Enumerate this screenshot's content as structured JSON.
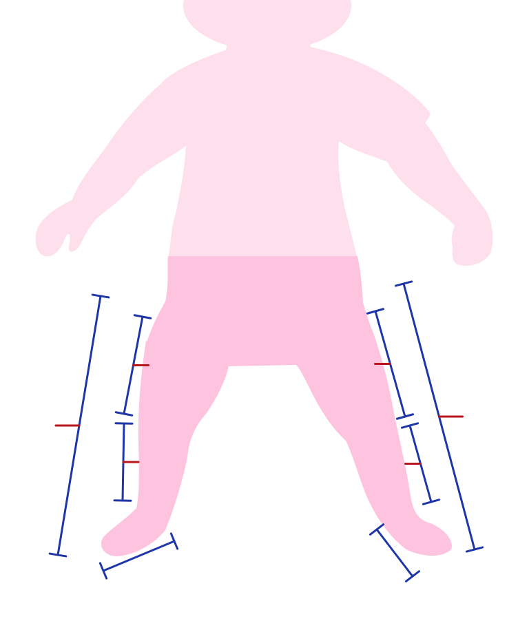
{
  "colors": {
    "background": "#ffffff",
    "upper_body": "#fde0ec",
    "lower_body": "#fdc3df",
    "measure_line": "#1f36a8",
    "midpoint_tick": "#b8151d"
  },
  "figure": {
    "regions": [
      "head",
      "torso",
      "left-arm",
      "right-arm",
      "hips",
      "left-leg",
      "right-leg"
    ]
  },
  "measurements": [
    {
      "id": "left-full-leg-length",
      "has_midpoint": true
    },
    {
      "id": "left-thigh-length",
      "has_midpoint": true
    },
    {
      "id": "left-shin-length",
      "has_midpoint": true
    },
    {
      "id": "left-foot-length",
      "has_midpoint": false
    },
    {
      "id": "right-full-leg-length",
      "has_midpoint": true
    },
    {
      "id": "right-thigh-length",
      "has_midpoint": true
    },
    {
      "id": "right-shin-length",
      "has_midpoint": true
    },
    {
      "id": "right-foot-length",
      "has_midpoint": false
    }
  ]
}
